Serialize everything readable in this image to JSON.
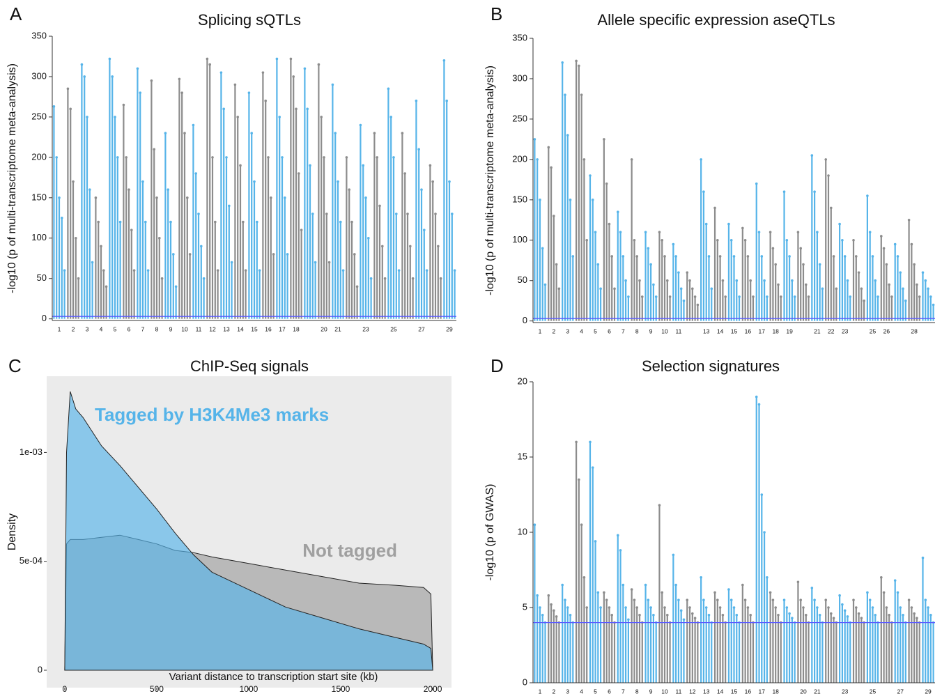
{
  "chart_data": [
    {
      "type": "manhattan",
      "panel": "A",
      "title": "Splicing sQTLs",
      "y_label": "-log10 (p of multi-transcriptome meta-analysis)",
      "categories": [
        "1",
        "2",
        "3",
        "4",
        "5",
        "6",
        "7",
        "8",
        "9",
        "10",
        "11",
        "12",
        "13",
        "14",
        "15",
        "16",
        "17",
        "18",
        null,
        "20",
        "21",
        null,
        "23",
        null,
        "25",
        null,
        "27",
        null,
        "29"
      ],
      "values": [
        [
          263,
          200,
          150,
          125,
          60
        ],
        [
          285,
          260,
          170,
          100,
          50
        ],
        [
          315,
          300,
          250,
          160,
          70
        ],
        [
          150,
          120,
          90,
          60,
          40
        ],
        [
          322,
          300,
          250,
          200,
          120
        ],
        [
          265,
          200,
          160,
          110,
          60
        ],
        [
          310,
          280,
          170,
          120,
          60
        ],
        [
          295,
          210,
          150,
          100,
          50
        ],
        [
          230,
          160,
          120,
          80,
          40
        ],
        [
          297,
          280,
          230,
          150,
          80
        ],
        [
          240,
          180,
          130,
          90,
          50
        ],
        [
          322,
          315,
          200,
          120,
          60
        ],
        [
          305,
          260,
          200,
          140,
          70
        ],
        [
          290,
          250,
          190,
          120,
          60
        ],
        [
          280,
          230,
          170,
          120,
          60
        ],
        [
          305,
          270,
          200,
          150,
          80
        ],
        [
          322,
          250,
          200,
          150,
          80
        ],
        [
          322,
          300,
          260,
          180,
          110
        ],
        [
          310,
          260,
          190,
          130,
          70
        ],
        [
          315,
          250,
          200,
          130,
          70
        ],
        [
          290,
          230,
          170,
          120,
          60
        ],
        [
          200,
          160,
          120,
          80,
          40
        ],
        [
          240,
          190,
          150,
          100,
          50
        ],
        [
          230,
          200,
          140,
          90,
          50
        ],
        [
          285,
          250,
          200,
          130,
          60
        ],
        [
          230,
          180,
          130,
          90,
          50
        ],
        [
          270,
          210,
          160,
          110,
          60
        ],
        [
          190,
          170,
          130,
          90,
          50
        ],
        [
          320,
          270,
          170,
          130,
          60
        ]
      ],
      "colors": [
        "#56b4e9",
        "#8c8c8c"
      ],
      "threshold": 3,
      "threshold_color": "#5b5bff",
      "ylim": [
        -2,
        350
      ],
      "yticks": [
        0,
        50,
        100,
        150,
        200,
        250,
        300,
        350
      ]
    },
    {
      "type": "manhattan",
      "panel": "B",
      "title": "Allele specific expression aseQTLs",
      "y_label": "-log10 (p of multi-transcriptome meta-analysis)",
      "categories": [
        "1",
        "2",
        "3",
        "4",
        "5",
        "6",
        "7",
        "8",
        "9",
        "10",
        "11",
        null,
        "13",
        "14",
        "15",
        "16",
        "17",
        "18",
        "19",
        null,
        "21",
        "22",
        "23",
        null,
        "25",
        "26",
        null,
        "28",
        null
      ],
      "values": [
        [
          225,
          200,
          150,
          90,
          45
        ],
        [
          215,
          190,
          130,
          70,
          40
        ],
        [
          320,
          280,
          230,
          150,
          80
        ],
        [
          322,
          316,
          280,
          200,
          100
        ],
        [
          180,
          150,
          110,
          70,
          40
        ],
        [
          225,
          170,
          120,
          80,
          40
        ],
        [
          135,
          110,
          80,
          50,
          30
        ],
        [
          200,
          100,
          80,
          50,
          30
        ],
        [
          110,
          90,
          70,
          45,
          30
        ],
        [
          110,
          100,
          80,
          50,
          30
        ],
        [
          95,
          80,
          60,
          40,
          25
        ],
        [
          60,
          50,
          40,
          30,
          20
        ],
        [
          200,
          160,
          120,
          80,
          40
        ],
        [
          140,
          100,
          80,
          50,
          30
        ],
        [
          120,
          100,
          80,
          50,
          30
        ],
        [
          115,
          100,
          80,
          50,
          30
        ],
        [
          170,
          110,
          80,
          50,
          30
        ],
        [
          110,
          90,
          70,
          45,
          30
        ],
        [
          160,
          100,
          80,
          50,
          30
        ],
        [
          110,
          90,
          70,
          45,
          30
        ],
        [
          205,
          160,
          110,
          70,
          40
        ],
        [
          200,
          180,
          140,
          80,
          40
        ],
        [
          120,
          100,
          80,
          50,
          30
        ],
        [
          100,
          80,
          60,
          40,
          25
        ],
        [
          155,
          110,
          80,
          50,
          30
        ],
        [
          105,
          90,
          70,
          45,
          30
        ],
        [
          95,
          80,
          60,
          40,
          25
        ],
        [
          125,
          95,
          70,
          45,
          30
        ],
        [
          60,
          50,
          40,
          30,
          20
        ]
      ],
      "colors": [
        "#56b4e9",
        "#8c8c8c"
      ],
      "threshold": 3,
      "threshold_color": "#5b5bff",
      "ylim": [
        -2,
        350
      ],
      "yticks": [
        0,
        50,
        100,
        150,
        200,
        250,
        300,
        350
      ]
    },
    {
      "type": "density",
      "panel": "C",
      "title": "ChIP-Seq signals",
      "y_label": "Density",
      "x_label": "Variant distance to transcription start site (kb)",
      "x": [
        0,
        10,
        30,
        60,
        100,
        200,
        300,
        400,
        500,
        600,
        700,
        800,
        1000,
        1200,
        1400,
        1600,
        1800,
        1950,
        1990,
        2000
      ],
      "series": [
        {
          "name": "Not tagged",
          "color": "#b4b4b4",
          "values": [
            0,
            0.00058,
            0.0006,
            0.0006,
            0.0006,
            0.00061,
            0.00062,
            0.0006,
            0.00058,
            0.00055,
            0.00054,
            0.00052,
            0.00049,
            0.00046,
            0.00043,
            0.0004,
            0.00039,
            0.00038,
            0.00035,
            0
          ]
        },
        {
          "name": "Tagged by H3K4Me3 marks",
          "color": "#56b4e9",
          "values": [
            0,
            0.001,
            0.00128,
            0.0012,
            0.00116,
            0.00103,
            0.00094,
            0.00084,
            0.00074,
            0.00063,
            0.00053,
            0.00045,
            0.00037,
            0.00029,
            0.00024,
            0.00019,
            0.00015,
            0.00012,
            0.0001,
            0
          ]
        }
      ],
      "xlim": [
        -98,
        2102
      ],
      "xticks": [
        0,
        500,
        1000,
        1500,
        2000
      ],
      "ylim": [
        -8e-05,
        0.00135
      ],
      "yticks": [
        0,
        {
          "value": 0.0005,
          "label": "5e-04"
        },
        {
          "value": 0.001,
          "label": "1e-03"
        }
      ]
    },
    {
      "type": "manhattan",
      "panel": "D",
      "title": "Selection signatures",
      "y_label": "-log10 (p of GWAS)",
      "categories": [
        "1",
        "2",
        "3",
        "4",
        "5",
        "6",
        "7",
        "8",
        "9",
        "10",
        "11",
        "12",
        "13",
        "14",
        "15",
        "16",
        "17",
        "18",
        null,
        "20",
        "21",
        null,
        "23",
        null,
        "25",
        null,
        "27",
        null,
        "29"
      ],
      "values": [
        [
          10.5,
          5.8,
          5,
          4.5,
          4
        ],
        [
          5.8,
          5.2,
          4.8,
          4.4,
          4
        ],
        [
          6.5,
          5.5,
          5,
          4.5,
          4
        ],
        [
          16,
          13.5,
          10.5,
          7,
          5
        ],
        [
          16,
          14.3,
          9.4,
          6,
          5
        ],
        [
          6,
          5.5,
          5,
          4.5,
          4
        ],
        [
          9.8,
          8.8,
          6.5,
          5,
          4.2
        ],
        [
          6.2,
          5.5,
          5,
          4.5,
          4
        ],
        [
          6.5,
          5.5,
          5,
          4.5,
          4
        ],
        [
          11.8,
          6,
          5,
          4.5,
          4
        ],
        [
          8.5,
          6.5,
          5.5,
          4.8,
          4.2
        ],
        [
          5.5,
          5,
          4.6,
          4.3,
          4
        ],
        [
          7,
          5.5,
          5,
          4.5,
          4
        ],
        [
          6,
          5.5,
          5,
          4.5,
          4
        ],
        [
          6.2,
          5.5,
          5,
          4.5,
          4
        ],
        [
          6.5,
          5.5,
          5,
          4.5,
          4
        ],
        [
          19,
          18.5,
          12.5,
          10,
          7
        ],
        [
          6,
          5.5,
          5,
          4.5,
          4
        ],
        [
          5.5,
          5,
          4.6,
          4.3,
          4
        ],
        [
          6.7,
          5.5,
          5,
          4.5,
          4
        ],
        [
          6.3,
          5.5,
          5,
          4.5,
          4
        ],
        [
          5.5,
          5,
          4.6,
          4.3,
          4
        ],
        [
          5.8,
          5.2,
          4.8,
          4.4,
          4
        ],
        [
          5.5,
          5,
          4.6,
          4.3,
          4
        ],
        [
          6,
          5.5,
          5,
          4.5,
          4
        ],
        [
          7,
          6,
          5,
          4.5,
          4
        ],
        [
          6.8,
          6,
          5,
          4.5,
          4
        ],
        [
          5.5,
          5,
          4.6,
          4.3,
          4
        ],
        [
          8.3,
          5.5,
          5,
          4.5,
          4
        ]
      ],
      "colors": [
        "#56b4e9",
        "#8c8c8c"
      ],
      "threshold": 4,
      "threshold_color": "#5b5bff",
      "ylim": [
        0,
        20
      ],
      "yticks": [
        0,
        5,
        10,
        15,
        20
      ]
    }
  ]
}
